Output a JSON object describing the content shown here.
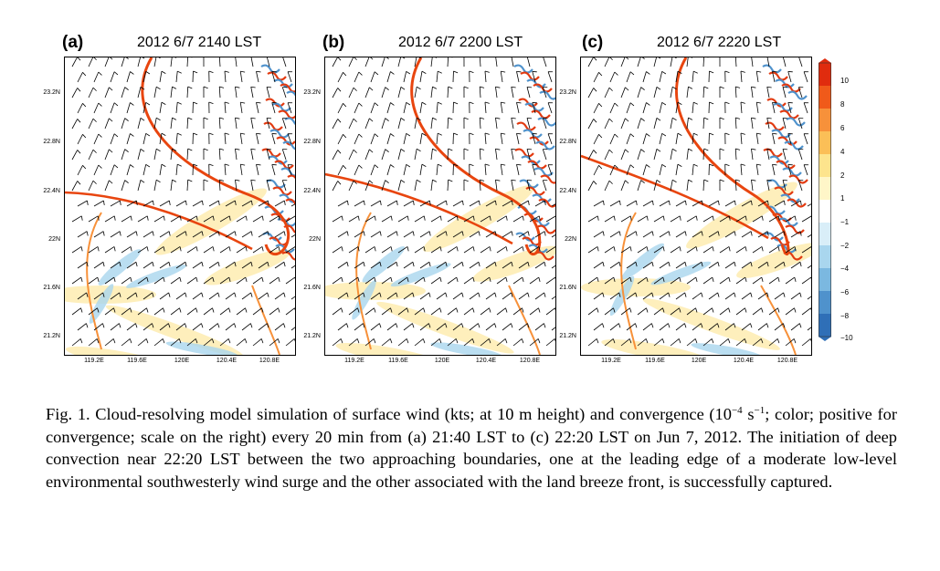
{
  "figure": {
    "panels": [
      {
        "label": "(a)",
        "timestamp": "2012 6/7 2140 LST"
      },
      {
        "label": "(b)",
        "timestamp": "2012 6/7 2200 LST"
      },
      {
        "label": "(c)",
        "timestamp": "2012 6/7 2220 LST"
      }
    ],
    "lat_ticks": [
      "23.2N",
      "22.8N",
      "22.4N",
      "22N",
      "21.6N",
      "21.2N"
    ],
    "lon_ticks": [
      "119.2E",
      "119.6E",
      "120E",
      "120.4E",
      "120.8E"
    ],
    "colorbar": {
      "ticks": [
        "10",
        "8",
        "6",
        "4",
        "2",
        "1",
        "−1",
        "−2",
        "−4",
        "−6",
        "−8",
        "−10"
      ],
      "colors": [
        "#e02c0e",
        "#f05a1a",
        "#f7913a",
        "#fbbf57",
        "#fde48d",
        "#fff6c8",
        "#ffffff",
        "#d9eef8",
        "#a9d6ee",
        "#7bb8e0",
        "#4f92cc",
        "#2f6fb7"
      ]
    }
  },
  "caption": {
    "prefix": "Fig. 1. Cloud-resolving model simulation of surface wind (kts; at 10 m height) and convergence (10",
    "exp": "−4",
    "mid": " s",
    "exp2": "−1",
    "rest": "; color; positive for convergence; scale on the right) every 20 min from (a) 21:40 LST to (c) 22:20 LST on Jun 7, 2012. The initiation of deep convection near 22:20 LST between the two approaching boundaries, one at the leading edge of a moderate low-level environmental southwesterly wind surge and the other associated with the land breeze front, is successfully captured."
  }
}
